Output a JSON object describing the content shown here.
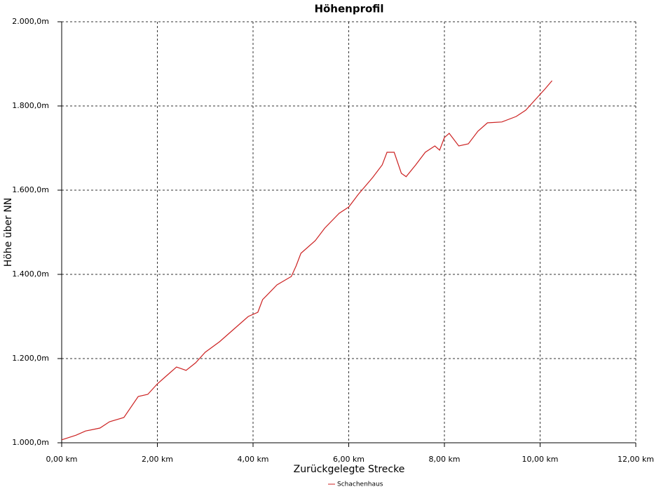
{
  "chart_data": {
    "type": "line",
    "title": "Höhenprofil",
    "x_label": "Zurückgelegte Strecke",
    "y_label": "Höhe über NN",
    "x": [
      0,
      0.3,
      0.5,
      0.8,
      1.0,
      1.3,
      1.6,
      1.8,
      2.0,
      2.2,
      2.4,
      2.6,
      2.8,
      3.0,
      3.3,
      3.6,
      3.9,
      4.1,
      4.2,
      4.5,
      4.8,
      4.9,
      5.0,
      5.3,
      5.5,
      5.8,
      6.0,
      6.2,
      6.5,
      6.7,
      6.8,
      6.95,
      7.1,
      7.2,
      7.4,
      7.6,
      7.8,
      7.9,
      8.0,
      8.1,
      8.3,
      8.5,
      8.7,
      8.9,
      9.2,
      9.5,
      9.7,
      9.9,
      10.1,
      10.25
    ],
    "series": [
      {
        "name": "Schachenhaus",
        "color": "#cc2222",
        "values": [
          1007,
          1018,
          1028,
          1035,
          1050,
          1060,
          1110,
          1115,
          1140,
          1160,
          1180,
          1172,
          1190,
          1215,
          1240,
          1270,
          1300,
          1310,
          1340,
          1375,
          1395,
          1420,
          1450,
          1480,
          1510,
          1545,
          1560,
          1590,
          1630,
          1660,
          1690,
          1690,
          1640,
          1632,
          1660,
          1690,
          1705,
          1695,
          1725,
          1735,
          1705,
          1710,
          1740,
          1760,
          1762,
          1775,
          1790,
          1815,
          1840,
          1860
        ]
      }
    ],
    "xlim": [
      0,
      12
    ],
    "ylim": [
      1000,
      2000
    ],
    "xticks": [
      {
        "value": 0,
        "label": "0,00 km"
      },
      {
        "value": 2,
        "label": "2,00 km"
      },
      {
        "value": 4,
        "label": "4,00 km"
      },
      {
        "value": 6,
        "label": "6,00 km"
      },
      {
        "value": 8,
        "label": "8,00 km"
      },
      {
        "value": 10,
        "label": "10,00 km"
      },
      {
        "value": 12,
        "label": "12,00 km"
      }
    ],
    "yticks": [
      {
        "value": 1000,
        "label": "1.000,0m"
      },
      {
        "value": 1200,
        "label": "1.200,0m"
      },
      {
        "value": 1400,
        "label": "1.400,0m"
      },
      {
        "value": 1600,
        "label": "1.600,0m"
      },
      {
        "value": 1800,
        "label": "1.800,0m"
      },
      {
        "value": 2000,
        "label": "2.000,0m"
      }
    ],
    "grid": true
  }
}
